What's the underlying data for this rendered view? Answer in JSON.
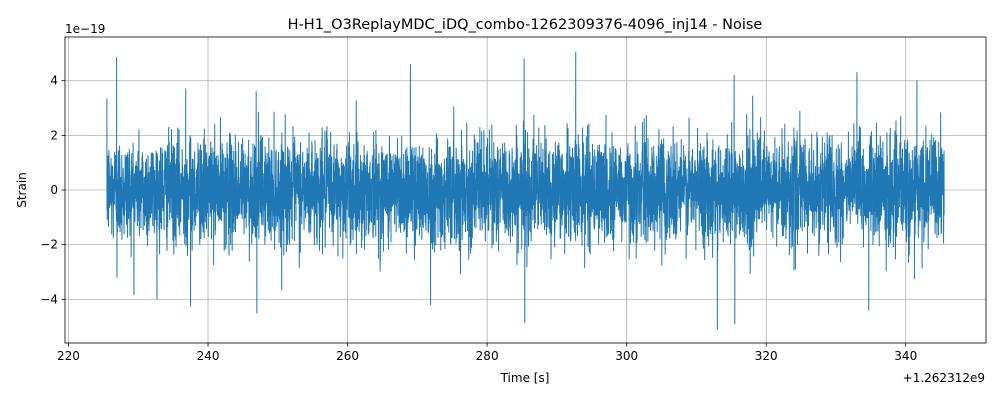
{
  "chart_data": {
    "type": "line",
    "title": "H-H1_O3ReplayMDC_iDQ_combo-1262309376-4096_inj14 - Noise",
    "xlabel": "Time [s]",
    "ylabel": "Strain",
    "x_offset_text": "+1.262312e9",
    "y_exponent_text": "1e−19",
    "xlim": [
      219.5,
      351.5
    ],
    "ylim": [
      -5.6,
      5.6
    ],
    "xticks": [
      220,
      240,
      260,
      280,
      300,
      320,
      340
    ],
    "xtick_labels": [
      "220",
      "240",
      "260",
      "280",
      "300",
      "320",
      "340"
    ],
    "yticks": [
      -4,
      -2,
      0,
      2,
      4
    ],
    "ytick_labels": [
      "−4",
      "−2",
      "0",
      "2",
      "4"
    ],
    "grid": true,
    "color": "#1f77b4",
    "series": [
      {
        "x_start": 225.5,
        "x_end": 345.5,
        "envelope_upper_max": 5.05,
        "envelope_lower_min": -5.1,
        "approx_std": 0.95,
        "peak_points": [
          [
            226.9,
            4.85
          ],
          [
            226.95,
            -3.2
          ],
          [
            236.8,
            3.7
          ],
          [
            237.5,
            -4.25
          ],
          [
            246.9,
            3.6
          ],
          [
            247.0,
            -4.5
          ],
          [
            269.0,
            4.6
          ],
          [
            271.9,
            -4.2
          ],
          [
            285.3,
            4.8
          ],
          [
            285.4,
            -4.85
          ],
          [
            292.7,
            5.05
          ],
          [
            313.0,
            -5.1
          ],
          [
            315.4,
            4.2
          ],
          [
            315.5,
            -4.9
          ],
          [
            333.0,
            4.3
          ],
          [
            334.7,
            -4.4
          ],
          [
            341.6,
            4.0
          ],
          [
            345.3,
            1.3
          ],
          [
            345.4,
            -1.1
          ]
        ]
      }
    ]
  }
}
